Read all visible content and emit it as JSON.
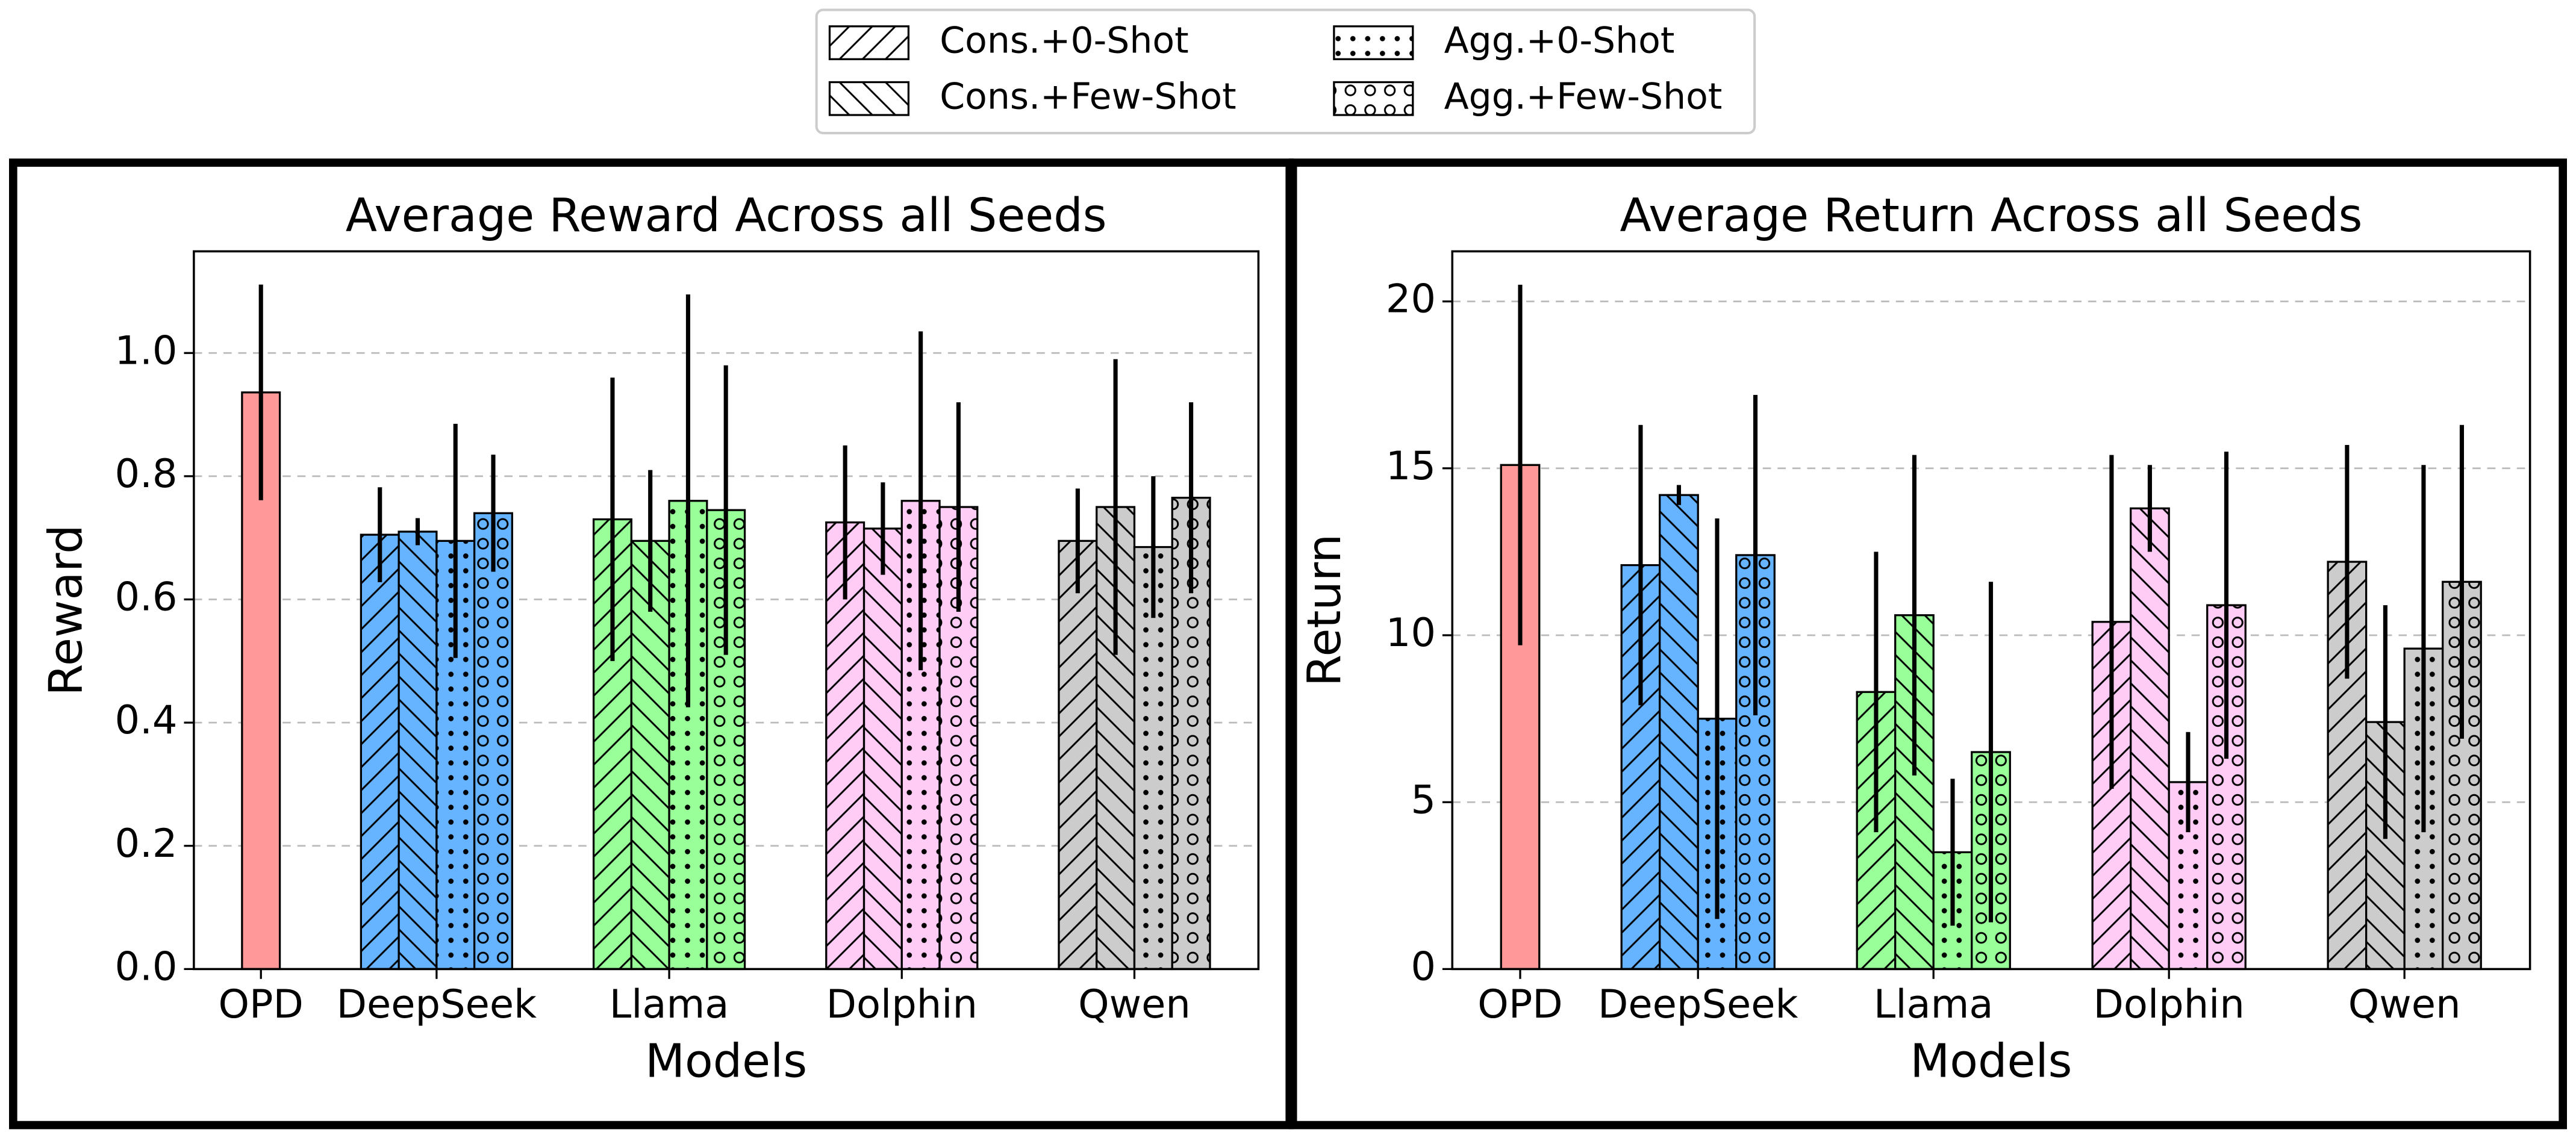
{
  "legend": {
    "entries": [
      {
        "name": "Cons.+0-Shot",
        "hatch": "/"
      },
      {
        "name": "Cons.+Few-Shot",
        "hatch": "\\"
      },
      {
        "name": "Agg.+0-Shot",
        "hatch": "."
      },
      {
        "name": "Agg.+Few-Shot",
        "hatch": "o"
      }
    ]
  },
  "chart_data": [
    {
      "type": "bar",
      "title": "Average Reward Across all Seeds",
      "x_label": "Models",
      "y_label": "Reward",
      "categories": [
        "OPD",
        "DeepSeek",
        "Llama",
        "Dolphin",
        "Qwen"
      ],
      "category_colors": [
        "#ff9999",
        "#66b3ff",
        "#99ff99",
        "#ffccf5",
        "#cccccc"
      ],
      "baseline": {
        "value": 0.936,
        "error": 0.175
      },
      "series": [
        {
          "values": [
            null,
            0.705,
            0.73,
            0.725,
            0.695
          ],
          "errors": [
            null,
            0.077,
            0.23,
            0.125,
            0.085
          ]
        },
        {
          "values": [
            null,
            0.71,
            0.695,
            0.715,
            0.75
          ],
          "errors": [
            null,
            0.022,
            0.115,
            0.075,
            0.24
          ]
        },
        {
          "values": [
            null,
            0.695,
            0.76,
            0.76,
            0.685
          ],
          "errors": [
            null,
            0.19,
            0.335,
            0.275,
            0.115
          ]
        },
        {
          "values": [
            null,
            0.74,
            0.745,
            0.75,
            0.765
          ],
          "errors": [
            null,
            0.095,
            0.235,
            0.17,
            0.155
          ]
        }
      ],
      "ylim": [
        0,
        1.165
      ],
      "yticks": [
        {
          "value": 0,
          "label": "0.0"
        },
        {
          "value": 0.2,
          "label": "0.2"
        },
        {
          "value": 0.4,
          "label": "0.4"
        },
        {
          "value": 0.6,
          "label": "0.6"
        },
        {
          "value": 0.8,
          "label": "0.8"
        },
        {
          "value": 1.0,
          "label": "1.0"
        }
      ],
      "grid": true
    },
    {
      "type": "bar",
      "title": "Average Return Across all Seeds",
      "x_label": "Models",
      "y_label": "Return",
      "categories": [
        "OPD",
        "DeepSeek",
        "Llama",
        "Dolphin",
        "Qwen"
      ],
      "category_colors": [
        "#ff9999",
        "#66b3ff",
        "#99ff99",
        "#ffccf5",
        "#cccccc"
      ],
      "baseline": {
        "value": 15.1,
        "error": 5.4
      },
      "series": [
        {
          "values": [
            null,
            12.1,
            8.3,
            10.4,
            12.2
          ],
          "errors": [
            null,
            4.2,
            4.2,
            5.0,
            3.5
          ]
        },
        {
          "values": [
            null,
            14.2,
            10.6,
            13.8,
            7.4
          ],
          "errors": [
            null,
            0.3,
            4.8,
            1.3,
            3.5
          ]
        },
        {
          "values": [
            null,
            7.5,
            3.5,
            5.6,
            9.6
          ],
          "errors": [
            null,
            6.0,
            2.2,
            1.5,
            5.5
          ]
        },
        {
          "values": [
            null,
            12.4,
            6.5,
            10.9,
            11.6
          ],
          "errors": [
            null,
            4.8,
            5.1,
            4.6,
            4.7
          ]
        }
      ],
      "ylim": [
        0,
        21.5
      ],
      "yticks": [
        0,
        5,
        10,
        15,
        20
      ],
      "grid": true
    }
  ]
}
